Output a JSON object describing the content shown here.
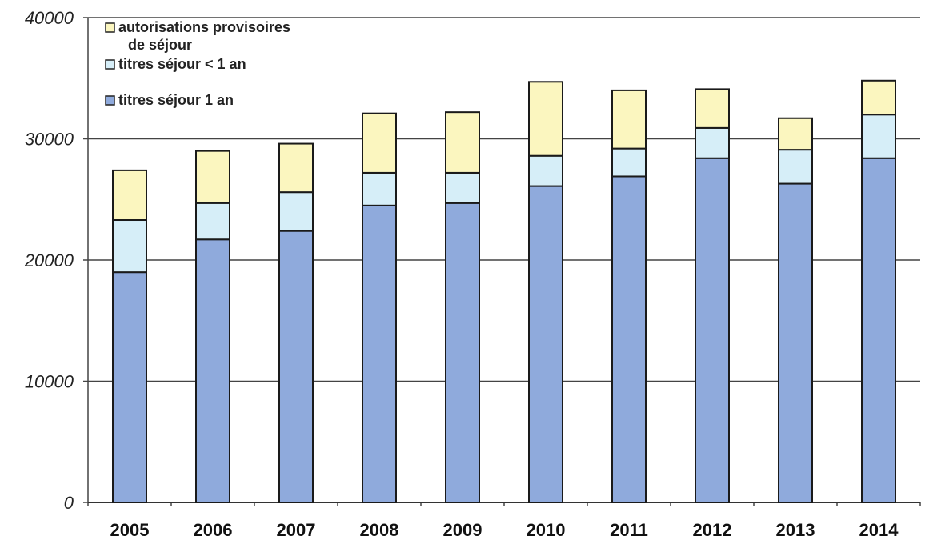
{
  "chart_data": {
    "type": "bar",
    "stacked": true,
    "categories": [
      "2005",
      "2006",
      "2007",
      "2008",
      "2009",
      "2010",
      "2011",
      "2012",
      "2013",
      "2014"
    ],
    "series": [
      {
        "name": "titres séjour 1 an",
        "color": "#8faadc",
        "values": [
          19000,
          21700,
          22400,
          24500,
          24700,
          26100,
          26900,
          28400,
          26300,
          28400
        ]
      },
      {
        "name": "titres séjour < 1 an",
        "color": "#d6eef8",
        "values": [
          4300,
          3000,
          3200,
          2700,
          2500,
          2500,
          2300,
          2500,
          2800,
          3600
        ]
      },
      {
        "name": "autorisations provisoires de séjour",
        "legend_lines": [
          "autorisations provisoires",
          "de séjour"
        ],
        "color": "#fbf6bf",
        "values": [
          4100,
          4300,
          4000,
          4900,
          5000,
          6100,
          4800,
          3200,
          2600,
          2800
        ]
      }
    ],
    "ylim": [
      0,
      40000
    ],
    "yticks": [
      "0",
      "10000",
      "20000",
      "30000",
      "40000"
    ],
    "grid": true,
    "legend_position": "top-left",
    "title": "",
    "xlabel": "",
    "ylabel": ""
  }
}
